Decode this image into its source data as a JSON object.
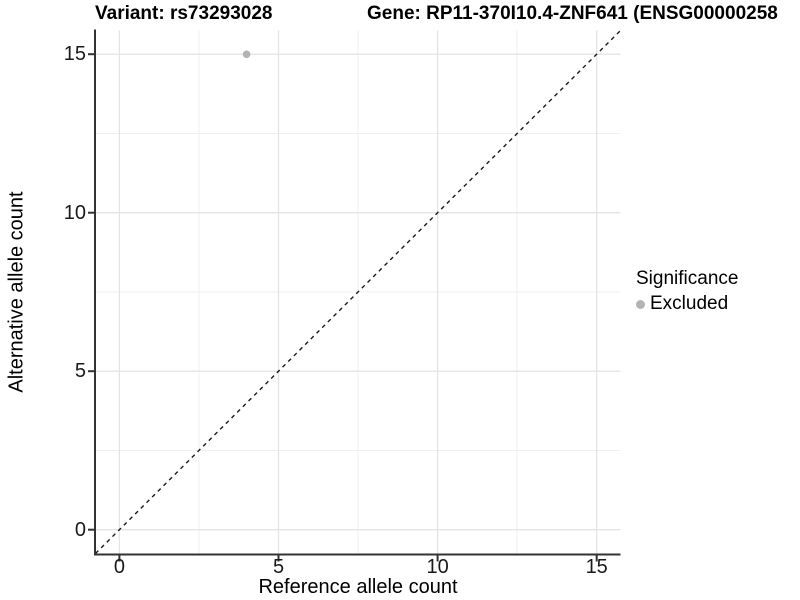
{
  "titles": {
    "variant": "Variant: rs73293028",
    "gene": "Gene: RP11-370I10.4-ZNF641 (ENSG00000258"
  },
  "axes": {
    "x": {
      "label": "Reference allele count",
      "ticks": [
        "0",
        "5",
        "10",
        "15"
      ]
    },
    "y": {
      "label": "Alternative allele count",
      "ticks": [
        "0",
        "5",
        "10",
        "15"
      ]
    }
  },
  "legend": {
    "title": "Significance",
    "items": [
      {
        "label": "Excluded",
        "color": "#b3b3b3"
      }
    ]
  },
  "colors": {
    "background": "#ffffff",
    "axis_line": "#333333",
    "grid_major": "#e4e4e4",
    "grid_minor": "#efefef",
    "reference_line": "#1a1a1a",
    "point": "#b3b3b3",
    "text": "#000000"
  },
  "chart_data": {
    "type": "scatter",
    "title_left": "Variant: rs73293028",
    "title_right": "Gene: RP11-370I10.4-ZNF641 (ENSG00000258",
    "xlabel": "Reference allele count",
    "ylabel": "Alternative allele count",
    "xlim": [
      -0.75,
      15.75
    ],
    "ylim": [
      -0.75,
      15.75
    ],
    "xticks": [
      0,
      5,
      10,
      15
    ],
    "yticks": [
      0,
      5,
      10,
      15
    ],
    "minor_ticks": [
      2.5,
      7.5,
      12.5
    ],
    "grid": true,
    "points": [
      {
        "x": 4,
        "y": 15,
        "series": "Excluded"
      }
    ],
    "point_color": "#b3b3b3",
    "point_radius_px": 3.8,
    "reference_line": {
      "type": "identity",
      "style": "dashed",
      "from": [
        -0.75,
        -0.75
      ],
      "to": [
        15.75,
        15.75
      ]
    },
    "legend_position": "right",
    "legend_title": "Significance",
    "legend_entries": [
      "Excluded"
    ]
  }
}
